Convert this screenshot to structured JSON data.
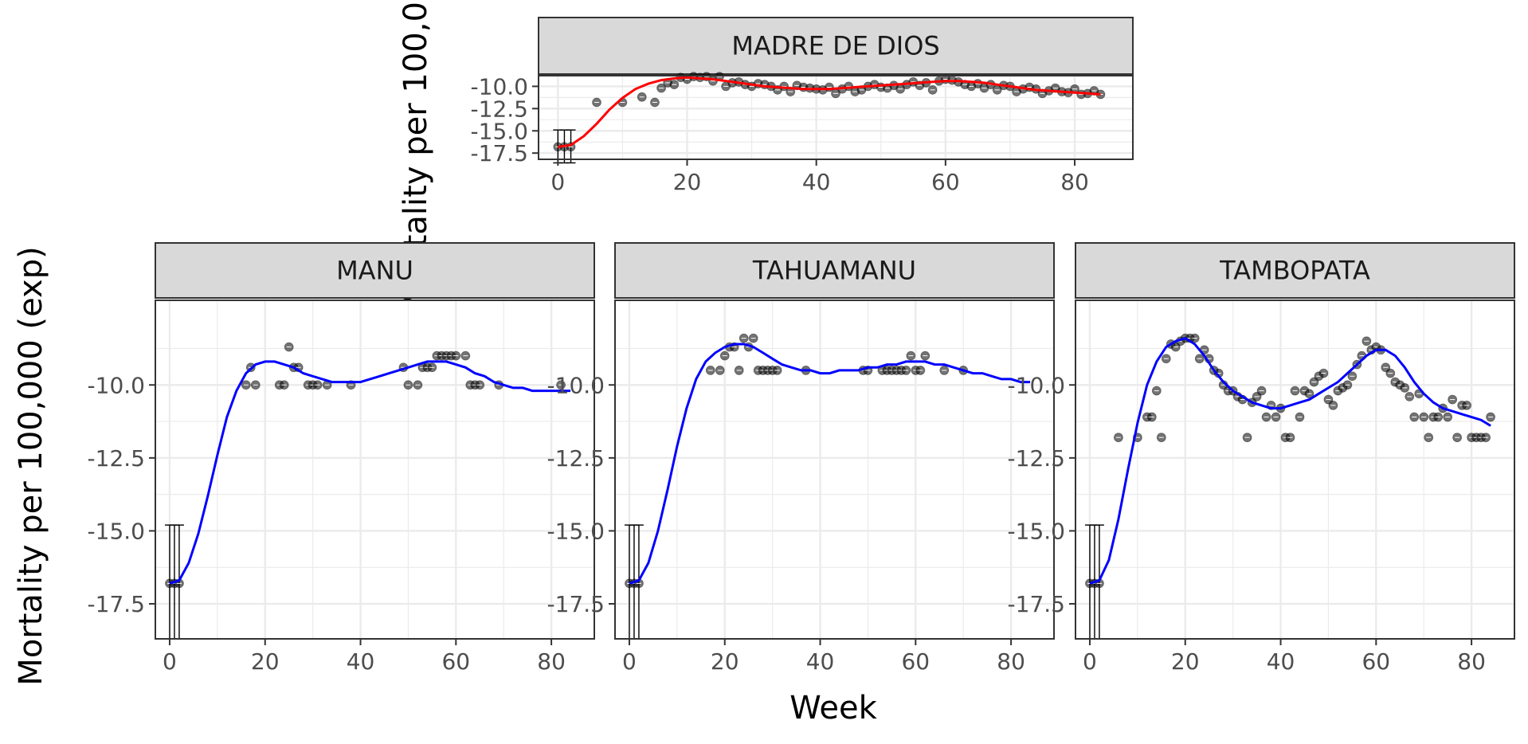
{
  "chart_data": {
    "type": "scatter",
    "xlabel": "Week",
    "ylabel": "Mortality per 100,000 (exp)",
    "colors": {
      "points": "#000000",
      "smooth_top": "#ff0000",
      "smooth_bottom": "#0000ff",
      "strip_fill": "#d9d9d9",
      "grid": "#ebebeb",
      "panel_border": "#333333",
      "tick_text": "#4d4d4d"
    },
    "panels": [
      {
        "name": "MADRE DE DIOS",
        "xlim": [
          -3,
          89
        ],
        "ylim": [
          -18.2,
          -8.8
        ],
        "x_ticks": [
          0,
          20,
          40,
          60,
          80
        ],
        "x_tick_labels": [
          "0",
          "20",
          "40",
          "60",
          "80"
        ],
        "y_ticks": [
          -17.5,
          -15,
          -12.5,
          -10
        ],
        "y_tick_labels": [
          "-17.5",
          "-15.0",
          "-12.5",
          "-10.0"
        ],
        "points": {
          "x": [
            0,
            1,
            2,
            6,
            10,
            13,
            15,
            16,
            17,
            18,
            19,
            20,
            21,
            22,
            23,
            24,
            25,
            26,
            27,
            28,
            29,
            30,
            31,
            32,
            33,
            34,
            35,
            36,
            37,
            38,
            39,
            40,
            41,
            42,
            43,
            44,
            45,
            46,
            47,
            48,
            49,
            50,
            51,
            52,
            53,
            54,
            55,
            56,
            57,
            58,
            59,
            60,
            61,
            62,
            63,
            64,
            65,
            66,
            67,
            68,
            69,
            70,
            71,
            72,
            73,
            74,
            75,
            76,
            77,
            78,
            79,
            80,
            81,
            82,
            83,
            84
          ],
          "y": [
            -16.8,
            -16.8,
            -16.8,
            -11.8,
            -11.8,
            -11.2,
            -11.8,
            -10.2,
            -9.6,
            -9.8,
            -9.0,
            -9.2,
            -8.9,
            -9.0,
            -8.9,
            -9.4,
            -8.9,
            -10.0,
            -9.6,
            -9.5,
            -9.8,
            -10.0,
            -9.7,
            -9.8,
            -10.0,
            -10.4,
            -10.0,
            -10.6,
            -9.9,
            -10.1,
            -10.2,
            -10.3,
            -10.4,
            -10.1,
            -10.8,
            -10.3,
            -10.0,
            -10.6,
            -10.4,
            -10.0,
            -9.8,
            -10.1,
            -10.2,
            -9.9,
            -10.3,
            -9.8,
            -9.5,
            -9.9,
            -9.6,
            -10.4,
            -9.4,
            -9.2,
            -9.3,
            -9.5,
            -9.8,
            -10.0,
            -9.7,
            -10.2,
            -9.8,
            -10.4,
            -9.9,
            -10.0,
            -10.6,
            -10.3,
            -10.1,
            -10.3,
            -10.8,
            -10.5,
            -10.2,
            -10.6,
            -10.7,
            -10.3,
            -10.9,
            -10.8,
            -10.5,
            -10.9
          ]
        },
        "error_bars": {
          "x": [
            0,
            1,
            2
          ],
          "ymin": [
            -18.6,
            -18.6,
            -18.6
          ],
          "ymax": [
            -14.9,
            -14.9,
            -14.9
          ]
        },
        "smooth": {
          "x": [
            0,
            2,
            4,
            6,
            8,
            10,
            12,
            14,
            16,
            18,
            20,
            22,
            24,
            26,
            28,
            30,
            32,
            34,
            36,
            38,
            40,
            42,
            44,
            46,
            48,
            50,
            52,
            54,
            56,
            58,
            60,
            62,
            64,
            66,
            68,
            70,
            72,
            74,
            76,
            78,
            80,
            82,
            84
          ],
          "y": [
            -16.8,
            -16.6,
            -15.6,
            -14.2,
            -12.6,
            -11.3,
            -10.3,
            -9.7,
            -9.3,
            -9.1,
            -9.0,
            -9.1,
            -9.2,
            -9.4,
            -9.6,
            -9.8,
            -10.0,
            -10.1,
            -10.2,
            -10.3,
            -10.3,
            -10.3,
            -10.2,
            -10.1,
            -10.0,
            -9.9,
            -9.8,
            -9.7,
            -9.6,
            -9.5,
            -9.4,
            -9.4,
            -9.5,
            -9.6,
            -9.8,
            -10.0,
            -10.2,
            -10.4,
            -10.5,
            -10.6,
            -10.7,
            -10.8,
            -10.9
          ]
        }
      },
      {
        "name": "MANU",
        "xlim": [
          -3,
          89
        ],
        "ylim": [
          -18.7,
          -7.1
        ],
        "x_ticks": [
          0,
          20,
          40,
          60,
          80
        ],
        "x_tick_labels": [
          "0",
          "20",
          "40",
          "60",
          "80"
        ],
        "y_ticks": [
          -17.5,
          -15,
          -12.5,
          -10
        ],
        "y_tick_labels": [
          "-17.5",
          "-15.0",
          "-12.5",
          "-10.0"
        ],
        "points": {
          "x": [
            0,
            1,
            2,
            16,
            17,
            18,
            23,
            24,
            25,
            26,
            27,
            29,
            30,
            31,
            33,
            38,
            49,
            50,
            52,
            53,
            54,
            55,
            56,
            57,
            58,
            59,
            60,
            62,
            63,
            64,
            65,
            69,
            82
          ],
          "y": [
            -16.8,
            -16.8,
            -16.8,
            -10.0,
            -9.4,
            -10.0,
            -10.0,
            -10.0,
            -8.7,
            -9.4,
            -9.4,
            -10.0,
            -10.0,
            -10.0,
            -10.0,
            -10.0,
            -9.4,
            -10.0,
            -10.0,
            -9.4,
            -9.4,
            -9.4,
            -9.0,
            -9.0,
            -9.0,
            -9.0,
            -9.0,
            -9.0,
            -10.0,
            -10.0,
            -10.0,
            -10.0,
            -10.0
          ]
        },
        "error_bars": {
          "x": [
            0,
            1,
            2
          ],
          "ymin": [
            -18.7,
            -18.7,
            -18.7
          ],
          "ymax": [
            -14.8,
            -14.8,
            -14.8
          ]
        },
        "smooth": {
          "x": [
            0,
            2,
            4,
            6,
            8,
            10,
            12,
            14,
            16,
            18,
            20,
            22,
            24,
            26,
            28,
            30,
            32,
            34,
            36,
            38,
            40,
            42,
            44,
            46,
            48,
            50,
            52,
            54,
            56,
            58,
            60,
            62,
            64,
            66,
            68,
            70,
            72,
            74,
            76,
            78,
            80,
            82,
            84
          ],
          "y": [
            -16.8,
            -16.7,
            -16.1,
            -15.1,
            -13.8,
            -12.4,
            -11.1,
            -10.2,
            -9.6,
            -9.3,
            -9.2,
            -9.2,
            -9.3,
            -9.4,
            -9.6,
            -9.7,
            -9.8,
            -9.9,
            -9.9,
            -9.9,
            -9.9,
            -9.8,
            -9.7,
            -9.6,
            -9.5,
            -9.4,
            -9.3,
            -9.2,
            -9.2,
            -9.2,
            -9.3,
            -9.4,
            -9.6,
            -9.7,
            -9.9,
            -10.0,
            -10.1,
            -10.1,
            -10.2,
            -10.2,
            -10.2,
            -10.2,
            -10.2
          ]
        }
      },
      {
        "name": "TAHUAMANU",
        "xlim": [
          -3,
          89
        ],
        "ylim": [
          -18.7,
          -7.1
        ],
        "x_ticks": [
          0,
          20,
          40,
          60,
          80
        ],
        "x_tick_labels": [
          "0",
          "20",
          "40",
          "60",
          "80"
        ],
        "y_ticks": [
          -17.5,
          -15,
          -12.5,
          -10
        ],
        "y_tick_labels": [
          "-17.5",
          "-15.0",
          "-12.5",
          "-10.0"
        ],
        "points": {
          "x": [
            0,
            1,
            2,
            17,
            19,
            20,
            21,
            22,
            23,
            24,
            25,
            26,
            27,
            28,
            29,
            30,
            31,
            37,
            49,
            50,
            53,
            54,
            55,
            56,
            57,
            58,
            59,
            60,
            61,
            62,
            66,
            70
          ],
          "y": [
            -16.8,
            -16.8,
            -16.8,
            -9.5,
            -9.5,
            -9.0,
            -8.7,
            -8.7,
            -9.5,
            -8.4,
            -8.7,
            -8.4,
            -9.5,
            -9.5,
            -9.5,
            -9.5,
            -9.5,
            -9.5,
            -9.5,
            -9.5,
            -9.5,
            -9.5,
            -9.5,
            -9.5,
            -9.5,
            -9.5,
            -9.0,
            -9.5,
            -9.5,
            -9.0,
            -9.5,
            -9.5
          ]
        },
        "error_bars": {
          "x": [
            0,
            1,
            2
          ],
          "ymin": [
            -18.7,
            -18.7,
            -18.7
          ],
          "ymax": [
            -14.8,
            -14.8,
            -14.8
          ]
        },
        "smooth": {
          "x": [
            0,
            2,
            4,
            6,
            8,
            10,
            12,
            14,
            16,
            18,
            20,
            22,
            24,
            26,
            28,
            30,
            32,
            34,
            36,
            38,
            40,
            42,
            44,
            46,
            48,
            50,
            52,
            54,
            56,
            58,
            60,
            62,
            64,
            66,
            68,
            70,
            72,
            74,
            76,
            78,
            80,
            82,
            84
          ],
          "y": [
            -16.8,
            -16.7,
            -16.1,
            -15.0,
            -13.6,
            -12.1,
            -10.8,
            -9.8,
            -9.2,
            -8.9,
            -8.7,
            -8.6,
            -8.6,
            -8.7,
            -8.9,
            -9.1,
            -9.3,
            -9.4,
            -9.5,
            -9.5,
            -9.6,
            -9.6,
            -9.5,
            -9.5,
            -9.5,
            -9.4,
            -9.4,
            -9.3,
            -9.3,
            -9.2,
            -9.2,
            -9.2,
            -9.3,
            -9.3,
            -9.4,
            -9.5,
            -9.6,
            -9.6,
            -9.7,
            -9.8,
            -9.8,
            -9.9,
            -9.9
          ]
        }
      },
      {
        "name": "TAMBOPATA",
        "xlim": [
          -3,
          89
        ],
        "ylim": [
          -18.7,
          -7.1
        ],
        "x_ticks": [
          0,
          20,
          40,
          60,
          80
        ],
        "x_tick_labels": [
          "0",
          "20",
          "40",
          "60",
          "80"
        ],
        "y_ticks": [
          -17.5,
          -15,
          -12.5,
          -10
        ],
        "y_tick_labels": [
          "-17.5",
          "-15.0",
          "-12.5",
          "-10.0"
        ],
        "points": {
          "x": [
            0,
            1,
            2,
            6,
            10,
            12,
            13,
            14,
            15,
            16,
            17,
            18,
            19,
            20,
            21,
            22,
            23,
            24,
            25,
            26,
            27,
            28,
            29,
            30,
            31,
            32,
            33,
            34,
            35,
            36,
            37,
            38,
            39,
            40,
            41,
            42,
            43,
            44,
            45,
            46,
            47,
            48,
            49,
            50,
            51,
            52,
            53,
            54,
            55,
            56,
            57,
            58,
            59,
            60,
            61,
            62,
            63,
            64,
            65,
            66,
            67,
            68,
            69,
            70,
            71,
            72,
            73,
            74,
            75,
            76,
            77,
            78,
            79,
            80,
            81,
            82,
            83,
            84
          ],
          "y": [
            -16.8,
            -16.8,
            -16.8,
            -11.8,
            -11.8,
            -11.1,
            -11.1,
            -10.2,
            -11.8,
            -9.1,
            -8.6,
            -8.7,
            -8.5,
            -8.4,
            -8.4,
            -8.4,
            -9.1,
            -8.8,
            -9.1,
            -9.5,
            -9.6,
            -10.0,
            -10.2,
            -10.2,
            -10.4,
            -10.5,
            -11.8,
            -10.6,
            -10.4,
            -10.2,
            -11.1,
            -10.7,
            -11.1,
            -10.8,
            -11.8,
            -11.8,
            -10.2,
            -11.1,
            -10.2,
            -10.3,
            -9.9,
            -9.7,
            -9.6,
            -10.5,
            -10.7,
            -10.2,
            -10.1,
            -10.0,
            -9.7,
            -9.3,
            -9.0,
            -8.5,
            -8.8,
            -8.7,
            -8.8,
            -9.4,
            -9.6,
            -9.9,
            -10.0,
            -10.1,
            -10.4,
            -11.1,
            -10.3,
            -11.1,
            -11.8,
            -11.1,
            -11.1,
            -10.8,
            -11.1,
            -10.5,
            -11.8,
            -10.7,
            -10.7,
            -11.8,
            -11.8,
            -11.8,
            -11.8,
            -11.1
          ]
        },
        "error_bars": {
          "x": [
            0,
            1,
            2
          ],
          "ymin": [
            -18.7,
            -18.7,
            -18.7
          ],
          "ymax": [
            -14.8,
            -14.8,
            -14.8
          ]
        },
        "smooth": {
          "x": [
            0,
            2,
            4,
            6,
            8,
            10,
            12,
            14,
            16,
            18,
            20,
            22,
            24,
            26,
            28,
            30,
            32,
            34,
            36,
            38,
            40,
            42,
            44,
            46,
            48,
            50,
            52,
            54,
            56,
            58,
            60,
            62,
            64,
            66,
            68,
            70,
            72,
            74,
            76,
            78,
            80,
            82,
            84
          ],
          "y": [
            -16.8,
            -16.7,
            -16.0,
            -14.6,
            -12.9,
            -11.3,
            -10.0,
            -9.2,
            -8.7,
            -8.5,
            -8.4,
            -8.6,
            -9.0,
            -9.5,
            -9.9,
            -10.2,
            -10.4,
            -10.6,
            -10.7,
            -10.8,
            -10.8,
            -10.7,
            -10.6,
            -10.5,
            -10.3,
            -10.1,
            -9.9,
            -9.6,
            -9.3,
            -9.0,
            -8.8,
            -8.8,
            -9.0,
            -9.4,
            -9.9,
            -10.3,
            -10.6,
            -10.8,
            -10.9,
            -11.0,
            -11.1,
            -11.2,
            -11.4
          ]
        }
      }
    ]
  }
}
